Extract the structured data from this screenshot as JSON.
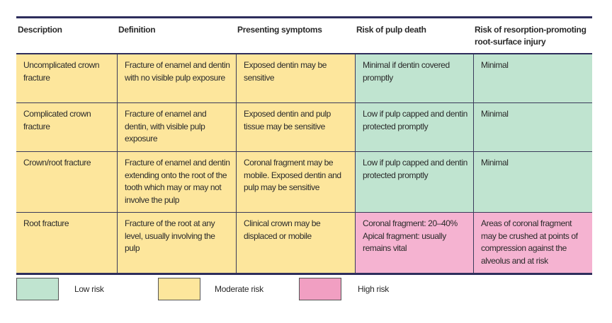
{
  "headers": [
    "Description",
    "Definition",
    "Presenting symptoms",
    "Risk of pulp death",
    "Risk of resorption-promoting root-surface injury"
  ],
  "rows": [
    {
      "cells": [
        "Uncomplicated crown fracture",
        "Fracture of enamel and dentin with no visible pulp exposure",
        "Exposed dentin may be sensitive",
        "Minimal if dentin covered promptly",
        "Minimal"
      ],
      "risk": [
        "moderate",
        "moderate",
        "moderate",
        "low",
        "low"
      ]
    },
    {
      "cells": [
        "Complicated crown fracture",
        "Fracture of enamel and dentin, with visible pulp exposure",
        "Exposed dentin and pulp tissue may be sensitive",
        "Low if pulp capped and dentin protected promptly",
        "Minimal"
      ],
      "risk": [
        "moderate",
        "moderate",
        "moderate",
        "low",
        "low"
      ]
    },
    {
      "cells": [
        "Crown/root fracture",
        "Fracture of enamel and dentin extending onto the root of the tooth which may or may not involve the pulp",
        "Coronal fragment may be mobile. Exposed dentin and pulp may be sensitive",
        "Low if pulp capped and dentin protected promptly",
        "Minimal"
      ],
      "risk": [
        "moderate",
        "moderate",
        "moderate",
        "low",
        "low"
      ]
    },
    {
      "cells": [
        "Root fracture",
        "Fracture of the root at any level, usually involving the pulp",
        "Clinical crown may be displaced or mobile",
        "Coronal fragment: 20–40% Apical fragment: usually remains vital",
        "Areas of coronal fragment may be crushed at points of compression against the alveolus and at risk"
      ],
      "risk": [
        "moderate",
        "moderate",
        "moderate",
        "high",
        "high"
      ]
    }
  ],
  "legend": [
    {
      "label": "Low risk",
      "color": "#c0e4d0"
    },
    {
      "label": "Moderate risk",
      "color": "#fde69c"
    },
    {
      "label": "High risk",
      "color": "#f19fc2"
    }
  ]
}
